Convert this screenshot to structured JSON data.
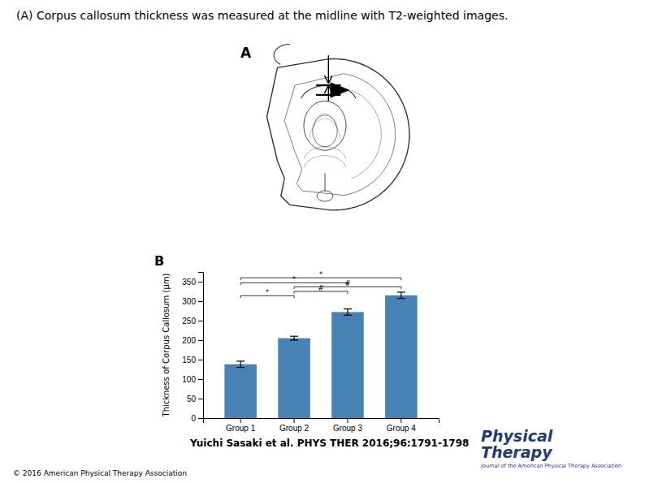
{
  "chart_data": {
    "type": "bar",
    "title": "(A) Corpus callosum thickness was measured at the midline with T2-weighted images.",
    "categories": [
      "Group 1",
      "Group 2",
      "Group 3",
      "Group 4"
    ],
    "values": [
      138,
      205,
      272,
      315
    ],
    "errors": [
      8,
      5,
      8,
      8
    ],
    "y_label": "Thickness of Corpus Callosum (μm)",
    "ylim": [
      0,
      375
    ],
    "yticks": [
      0,
      50,
      100,
      150,
      200,
      250,
      300,
      350
    ],
    "grid": false,
    "brackets": [
      {
        "from": "Group 1",
        "to": "Group 4",
        "y": 360,
        "label": "*"
      },
      {
        "from": "Group 1",
        "to": "Group 3",
        "y": 347,
        "label": "*"
      },
      {
        "from": "Group 2",
        "to": "Group 4",
        "y": 337,
        "label": "#"
      },
      {
        "from": "Group 2",
        "to": "Group 3",
        "y": 325,
        "label": "#"
      },
      {
        "from": "Group 1",
        "to": "Group 2",
        "y": 314,
        "label": "*"
      }
    ],
    "annotations": [
      "A",
      "B",
      "Yuichi Sasaki et al. PHYS THER 2016;96:1791-1798",
      "© 2016 American Physical Therapy Association",
      "Physical",
      "Therapy",
      "Journal of the American Physical Therapy Association"
    ]
  }
}
